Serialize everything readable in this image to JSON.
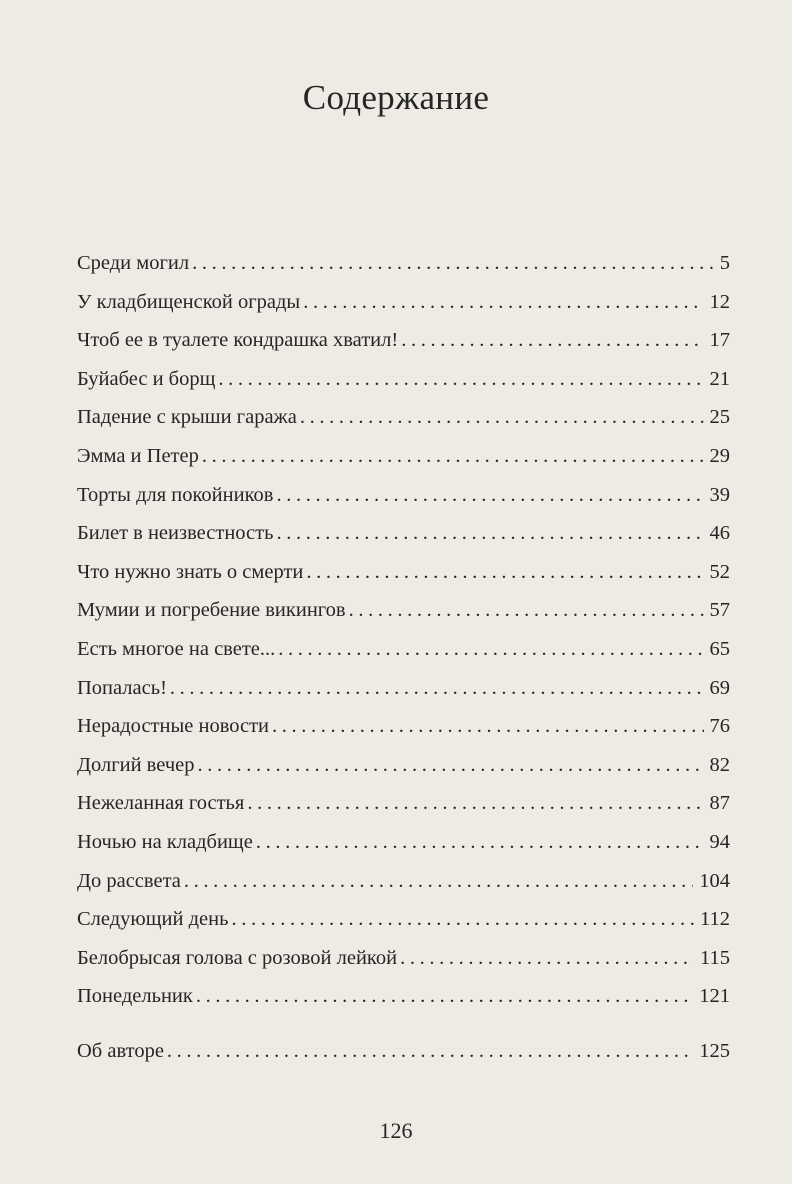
{
  "title": "Содержание",
  "entries": [
    {
      "label": "Среди могил",
      "page": "5"
    },
    {
      "label": "У кладбищенской ограды",
      "page": "12"
    },
    {
      "label": "Чтоб ее в туалете кондрашка хватил!",
      "page": "17"
    },
    {
      "label": "Буйабес и борщ",
      "page": "21"
    },
    {
      "label": "Падение с крыши гаража",
      "page": "25"
    },
    {
      "label": "Эмма и Петер",
      "page": "29"
    },
    {
      "label": "Торты для покойников",
      "page": "39"
    },
    {
      "label": "Билет в неизвестность",
      "page": "46"
    },
    {
      "label": "Что нужно знать о смерти",
      "page": "52"
    },
    {
      "label": "Мумии и погребение викингов",
      "page": "57"
    },
    {
      "label": "Есть многое на свете...",
      "page": "65"
    },
    {
      "label": "Попалась!",
      "page": "69"
    },
    {
      "label": "Нерадостные новости",
      "page": "76"
    },
    {
      "label": "Долгий вечер",
      "page": "82"
    },
    {
      "label": "Нежеланная гостья",
      "page": "87"
    },
    {
      "label": "Ночью на кладбище",
      "page": "94"
    },
    {
      "label": "До рассвета",
      "page": "104"
    },
    {
      "label": "Следующий день",
      "page": "112"
    },
    {
      "label": "Белобрысая голова с розовой лейкой",
      "page": "115"
    },
    {
      "label": "Понедельник",
      "page": "121"
    }
  ],
  "appendix": {
    "label": "Об авторе",
    "page": "125"
  },
  "page_number": "126"
}
